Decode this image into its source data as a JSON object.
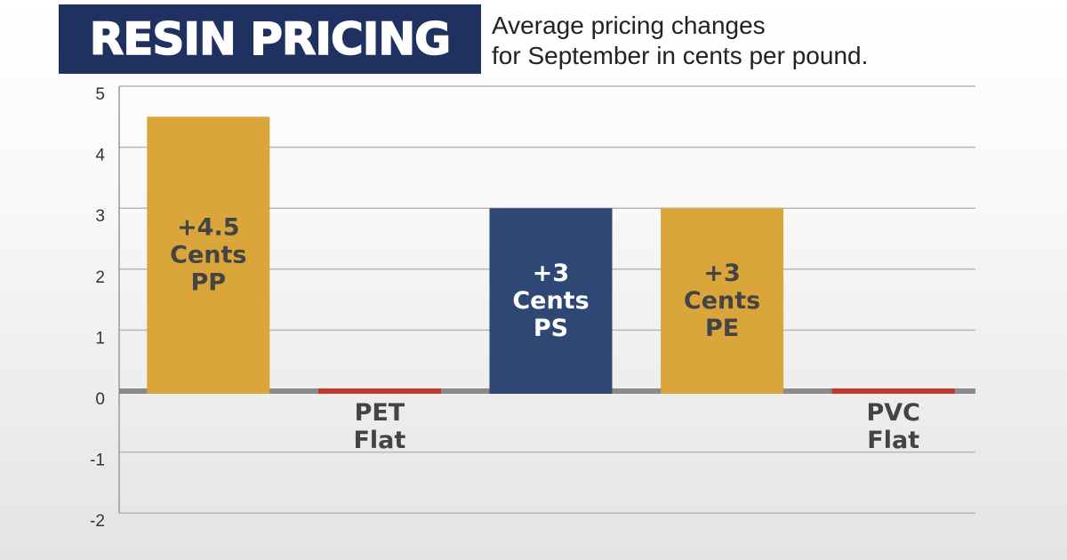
{
  "chart_data": {
    "type": "bar",
    "title": "RESIN PRICING",
    "subtitle": [
      "Average pricing changes",
      "for September in cents per pound."
    ],
    "xlabel": "",
    "ylabel": "",
    "ylim": [
      -2,
      5
    ],
    "yticks": [
      "5",
      "4",
      "3",
      "2",
      "1",
      "0",
      "-1",
      "-2"
    ],
    "grid": true,
    "legend": "none",
    "categories": [
      "PP",
      "PET",
      "PS",
      "PE",
      "PVC"
    ],
    "values": [
      4.5,
      0,
      3,
      3,
      0
    ],
    "bar_labels": [
      [
        "+4.5",
        "Cents",
        "PP"
      ],
      [
        "PET",
        "Flat"
      ],
      [
        "+3",
        "Cents",
        "PS"
      ],
      [
        "+3",
        "Cents",
        "PE"
      ],
      [
        "PVC",
        "Flat"
      ]
    ],
    "colors": [
      "#daa63c",
      "#c0392b",
      "#2f4774",
      "#daa63c",
      "#c0392b"
    ],
    "label_colors": [
      "#444444",
      "#444444",
      "#ffffff",
      "#444444",
      "#444444"
    ],
    "title_bg": "#1f3160",
    "zero_line_color": "#8a8a8a"
  }
}
